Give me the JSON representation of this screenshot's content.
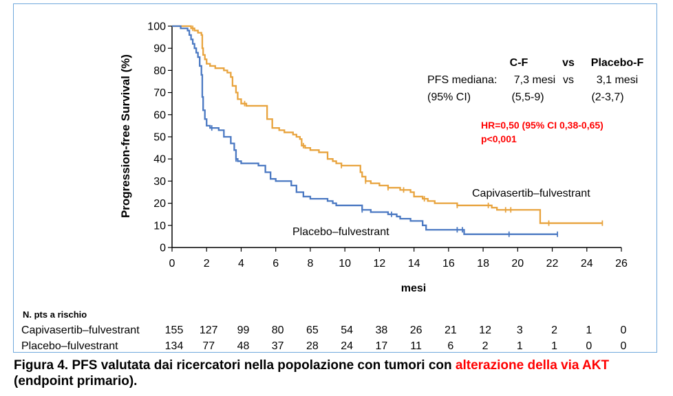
{
  "chart_data": {
    "type": "line",
    "subtype": "kaplan-meier step curve with censor marks",
    "ylabel": "Progression-free Survival (%)",
    "xlabel": "mesi",
    "xlim": [
      0,
      26
    ],
    "ylim": [
      0,
      100
    ],
    "x_ticks": [
      0,
      2,
      4,
      6,
      8,
      10,
      12,
      14,
      16,
      18,
      20,
      22,
      24,
      26
    ],
    "y_ticks": [
      0,
      10,
      20,
      30,
      40,
      50,
      60,
      70,
      80,
      90,
      100
    ],
    "grid": false,
    "series": [
      {
        "name": "Capivasertib–fulvestrant",
        "color": "#e8a33d",
        "steps": [
          [
            0,
            100
          ],
          [
            0.8,
            100
          ],
          [
            1.1,
            99
          ],
          [
            1.3,
            98
          ],
          [
            1.5,
            97
          ],
          [
            1.7,
            96
          ],
          [
            1.75,
            90
          ],
          [
            1.8,
            87
          ],
          [
            1.9,
            85
          ],
          [
            2.0,
            83
          ],
          [
            2.2,
            82
          ],
          [
            2.5,
            81
          ],
          [
            3.0,
            80
          ],
          [
            3.2,
            79
          ],
          [
            3.4,
            77
          ],
          [
            3.5,
            73
          ],
          [
            3.7,
            70
          ],
          [
            3.8,
            67
          ],
          [
            4.0,
            65
          ],
          [
            4.3,
            64
          ],
          [
            5.3,
            64
          ],
          [
            5.5,
            58
          ],
          [
            5.8,
            54
          ],
          [
            6.2,
            53
          ],
          [
            6.5,
            52
          ],
          [
            7.0,
            51
          ],
          [
            7.2,
            50
          ],
          [
            7.4,
            49
          ],
          [
            7.5,
            46
          ],
          [
            7.7,
            45
          ],
          [
            8.0,
            44
          ],
          [
            8.5,
            43
          ],
          [
            9.0,
            40
          ],
          [
            9.3,
            39
          ],
          [
            9.5,
            38
          ],
          [
            9.8,
            37
          ],
          [
            10.8,
            37
          ],
          [
            10.9,
            34
          ],
          [
            11.0,
            32
          ],
          [
            11.2,
            30
          ],
          [
            11.5,
            29
          ],
          [
            12.0,
            28
          ],
          [
            12.5,
            27
          ],
          [
            13.2,
            26
          ],
          [
            13.8,
            25
          ],
          [
            14.0,
            23
          ],
          [
            14.5,
            22
          ],
          [
            14.8,
            21
          ],
          [
            15.2,
            20
          ],
          [
            16.0,
            20
          ],
          [
            16.5,
            19
          ],
          [
            18.5,
            18
          ],
          [
            18.8,
            17
          ],
          [
            21.2,
            17
          ],
          [
            21.3,
            11
          ],
          [
            24.9,
            11
          ]
        ],
        "censor_x": [
          1.2,
          4.2,
          7.6,
          9.8,
          11.2,
          12.5,
          13.4,
          14.6,
          16.5,
          18.3,
          19.3,
          19.6,
          21.8,
          24.9
        ]
      },
      {
        "name": "Placebo–fulvestrant",
        "color": "#4a78c2",
        "steps": [
          [
            0,
            100
          ],
          [
            0.5,
            99
          ],
          [
            0.9,
            98
          ],
          [
            1.0,
            96
          ],
          [
            1.1,
            94
          ],
          [
            1.2,
            92
          ],
          [
            1.3,
            90
          ],
          [
            1.4,
            88
          ],
          [
            1.5,
            86
          ],
          [
            1.6,
            82
          ],
          [
            1.7,
            78
          ],
          [
            1.75,
            68
          ],
          [
            1.8,
            62
          ],
          [
            1.9,
            58
          ],
          [
            2.0,
            55
          ],
          [
            2.2,
            54
          ],
          [
            2.7,
            53
          ],
          [
            3.0,
            50
          ],
          [
            3.4,
            47
          ],
          [
            3.6,
            44
          ],
          [
            3.7,
            40
          ],
          [
            3.8,
            39
          ],
          [
            4.0,
            38
          ],
          [
            5.0,
            37
          ],
          [
            5.4,
            34
          ],
          [
            5.7,
            31
          ],
          [
            6.0,
            30
          ],
          [
            6.9,
            28
          ],
          [
            7.2,
            25
          ],
          [
            7.6,
            23
          ],
          [
            8.0,
            22
          ],
          [
            9.0,
            21
          ],
          [
            9.3,
            20
          ],
          [
            9.5,
            19
          ],
          [
            10.8,
            19
          ],
          [
            11.0,
            17
          ],
          [
            11.5,
            16
          ],
          [
            12.5,
            15
          ],
          [
            13.0,
            14
          ],
          [
            13.2,
            13
          ],
          [
            13.8,
            12
          ],
          [
            14.5,
            10
          ],
          [
            14.7,
            8
          ],
          [
            16.6,
            8
          ],
          [
            16.9,
            6
          ],
          [
            22.3,
            6
          ]
        ],
        "censor_x": [
          2.3,
          3.7,
          11.0,
          12.7,
          16.5,
          16.8,
          19.5,
          22.3
        ]
      }
    ],
    "annotations": {
      "col_cf": "C-F",
      "col_vs": "vs",
      "col_placebo": "Placebo-F",
      "row1_label": "PFS mediana:",
      "row1_cf": "7,3 mesi",
      "row1_vs": "vs",
      "row1_placebo": "3,1 mesi",
      "row2_label": "(95% CI)",
      "row2_cf": "(5,5-9)",
      "row2_placebo": "(2-3,7)",
      "hr_line1": "HR=0,50 (95% CI 0,38-0,65)",
      "hr_line2": "p<0,001",
      "hr_color": "#ff0000",
      "capi_label": "Capivasertib–fulvestrant",
      "placebo_label": "Placebo–fulvestrant"
    },
    "risk_table": {
      "title": "N. pts a rischio",
      "rows": [
        {
          "label": "Capivasertib–fulvestrant",
          "values": [
            "155",
            "127",
            "99",
            "80",
            "65",
            "54",
            "38",
            "26",
            "21",
            "12",
            "3",
            "2",
            "1",
            "0"
          ]
        },
        {
          "label": "Placebo–fulvestrant",
          "values": [
            "134",
            "77",
            "48",
            "37",
            "28",
            "24",
            "17",
            "11",
            "6",
            "2",
            "1",
            "1",
            "0",
            "0"
          ]
        }
      ]
    }
  },
  "caption": {
    "part1": "Figura 4. PFS valutata dai ricercatori nella popolazione con tumori con ",
    "highlight": "alterazione della via AKT",
    "part2": " (endpoint primario).",
    "highlight_color": "#ff0000"
  }
}
